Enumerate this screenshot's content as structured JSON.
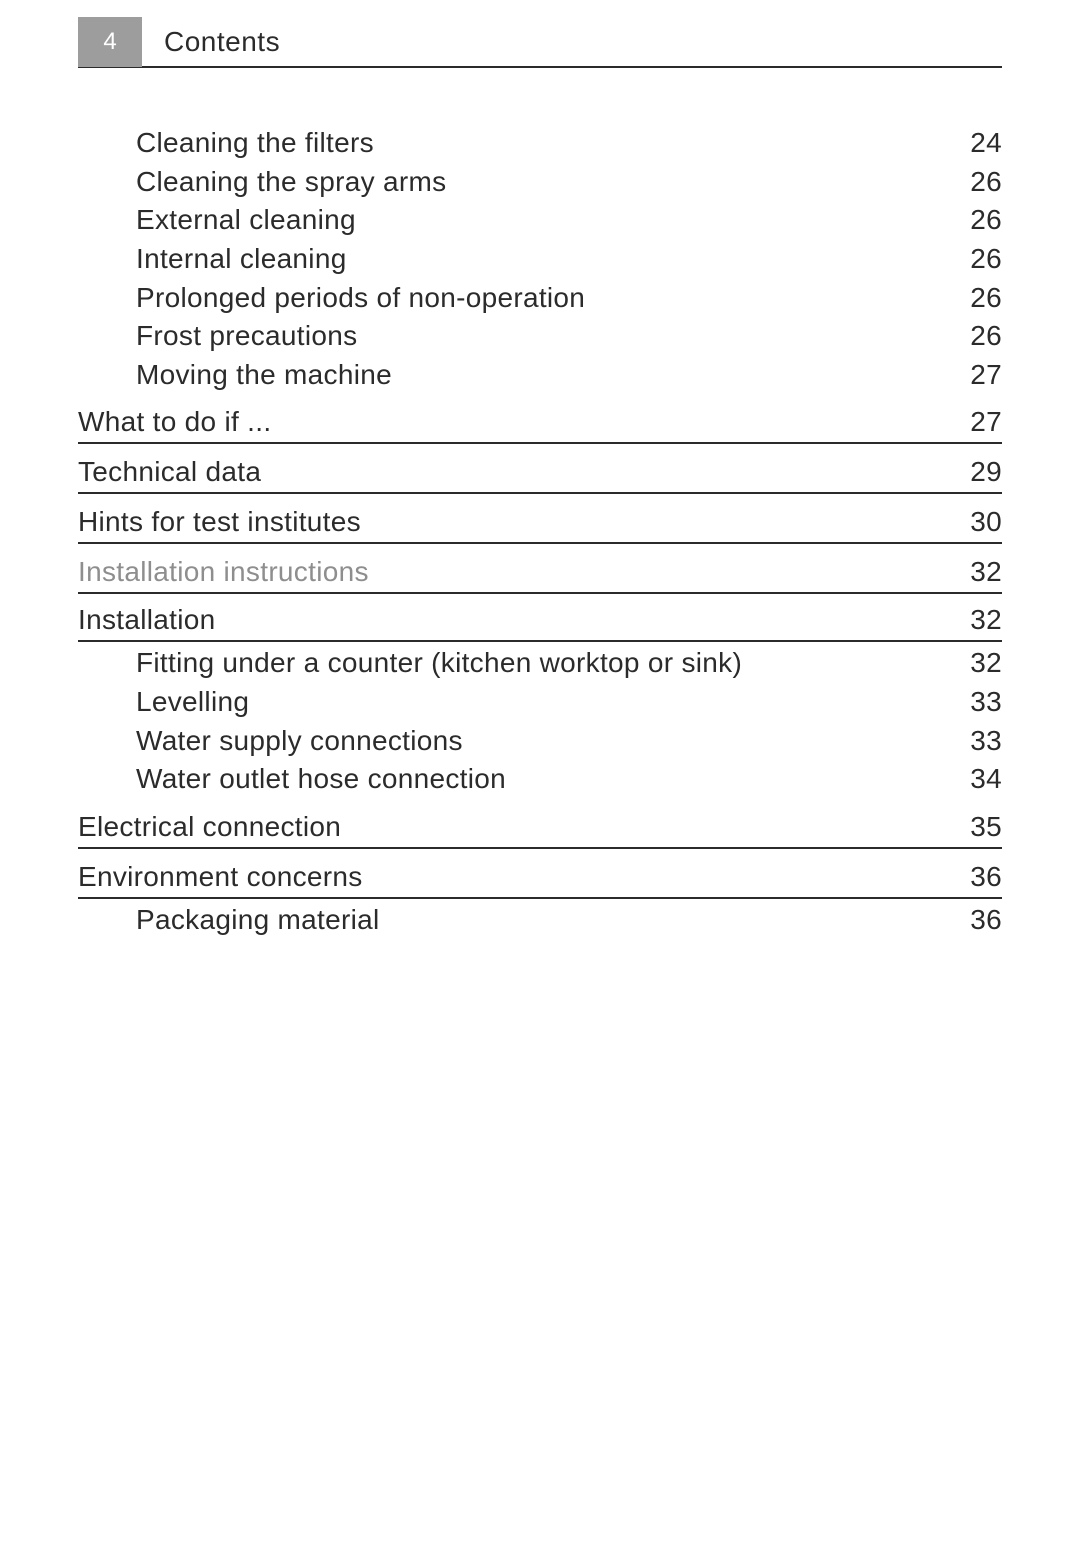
{
  "header": {
    "page_number": "4",
    "title": "Contents"
  },
  "pre_items": [
    {
      "label": "Cleaning the filters",
      "page": "24"
    },
    {
      "label": "Cleaning the spray arms",
      "page": "26"
    },
    {
      "label": "External cleaning",
      "page": "26"
    },
    {
      "label": "Internal cleaning",
      "page": "26"
    },
    {
      "label": "Prolonged periods of non-operation",
      "page": "26"
    },
    {
      "label": "Frost precautions",
      "page": "26"
    },
    {
      "label": "Moving the machine",
      "page": "27"
    }
  ],
  "sections": [
    {
      "heading": "What to do if ...",
      "page": "27",
      "muted": false,
      "items": []
    },
    {
      "heading": "Technical data",
      "page": "29",
      "muted": false,
      "items": []
    },
    {
      "heading": "Hints for test institutes",
      "page": "30",
      "muted": false,
      "items": []
    },
    {
      "heading": "Installation instructions",
      "page": "32",
      "muted": true,
      "items": []
    },
    {
      "heading": "Installation",
      "page": "32",
      "muted": false,
      "items": [
        {
          "label": "Fitting under a counter (kitchen worktop or sink)",
          "page": "32"
        },
        {
          "label": "Levelling",
          "page": "33"
        },
        {
          "label": "Water supply connections",
          "page": "33"
        },
        {
          "label": "Water outlet hose connection",
          "page": "34"
        }
      ]
    },
    {
      "heading": "Electrical connection",
      "page": "35",
      "muted": false,
      "items": []
    },
    {
      "heading": "Environment concerns",
      "page": "36",
      "muted": false,
      "items": [
        {
          "label": "Packaging material",
          "page": "36"
        }
      ]
    }
  ]
}
